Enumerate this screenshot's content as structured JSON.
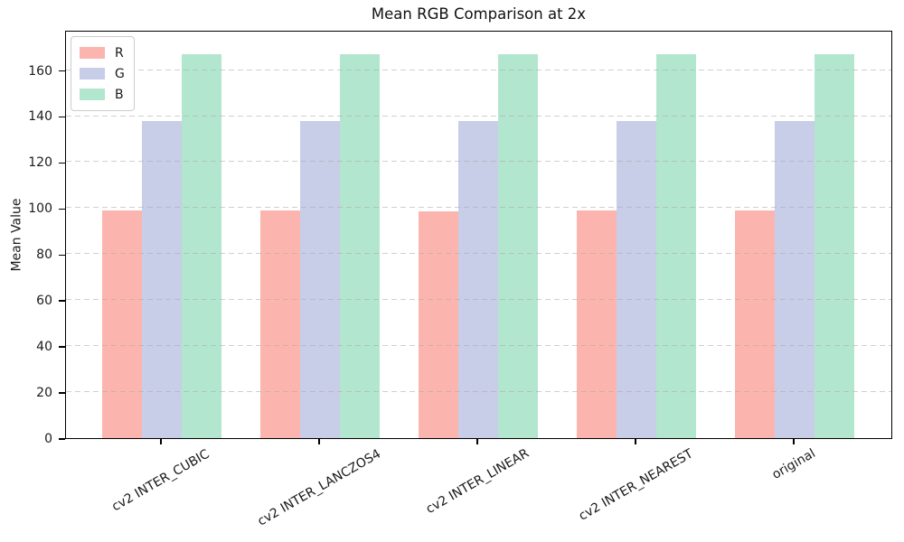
{
  "title": "Mean RGB Comparison at 2x",
  "ylabel": "Mean Value",
  "chart_data": {
    "type": "bar",
    "title": "Mean RGB Comparison at 2x",
    "xlabel": "",
    "ylabel": "Mean Value",
    "categories": [
      "cv2 INTER_CUBIC",
      "cv2 INTER_LANCZOS4",
      "cv2 INTER_LINEAR",
      "cv2 INTER_NEAREST",
      "original"
    ],
    "series": [
      {
        "name": "R",
        "color": "#fcb5ae",
        "values": [
          99,
          99,
          98.6,
          99,
          99
        ]
      },
      {
        "name": "G",
        "color": "#c8cde8",
        "values": [
          138,
          138,
          138,
          138,
          138
        ]
      },
      {
        "name": "B",
        "color": "#b3e6ce",
        "values": [
          167,
          167,
          167,
          167,
          167
        ]
      }
    ],
    "ylim": [
      0,
      177.5
    ],
    "yticks": [
      0,
      20,
      40,
      60,
      80,
      100,
      120,
      140,
      160
    ],
    "grid": "horizontal-dashed",
    "legend_position": "upper-left",
    "bar_width_ratio": 0.25,
    "xtick_rotation_deg": 30
  },
  "colors": {
    "background": "#ffffff",
    "spine": "#000000",
    "grid": "#aaaaaa",
    "text": "#1a1a1a"
  }
}
